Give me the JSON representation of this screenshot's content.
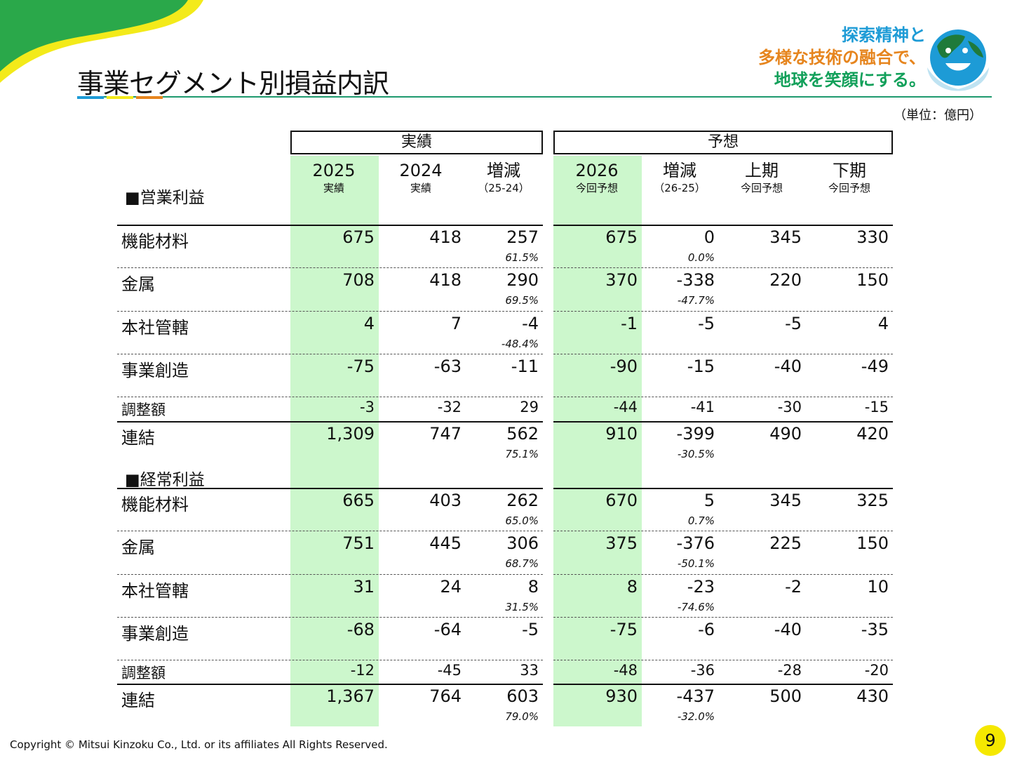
{
  "header": {
    "title": "事業セグメント別損益内訳",
    "slogan": [
      "探索精神と",
      "多様な技術の融合で、",
      "地球を笑顔にする。"
    ]
  },
  "unit": "（単位：億円）",
  "column_groups": {
    "actual": "実績",
    "forecast": "予想"
  },
  "columns": [
    {
      "year": "2025",
      "sub": "実績"
    },
    {
      "year": "2024",
      "sub": "実績"
    },
    {
      "year": "増減",
      "sub": "（25-24）"
    },
    {
      "year": "2026",
      "sub": "今回予想"
    },
    {
      "year": "増減",
      "sub": "（26-25）"
    },
    {
      "year": "上期",
      "sub": "今回予想"
    },
    {
      "year": "下期",
      "sub": "今回予想"
    }
  ],
  "sections": [
    {
      "title": "■営業利益",
      "rows": [
        {
          "label": "機能材料",
          "values": [
            "675",
            "418",
            "257",
            "675",
            "0",
            "345",
            "330"
          ],
          "pct1": "61.5%",
          "pct2": "0.0%"
        },
        {
          "label": "金属",
          "values": [
            "708",
            "418",
            "290",
            "370",
            "-338",
            "220",
            "150"
          ],
          "pct1": "69.5%",
          "pct2": "-47.7%"
        },
        {
          "label": "本社管轄",
          "values": [
            "4",
            "7",
            "-4",
            "-1",
            "-5",
            "-5",
            "4"
          ],
          "pct1": "-48.4%",
          "pct2": ""
        },
        {
          "label": "事業創造",
          "values": [
            "-75",
            "-63",
            "-11",
            "-90",
            "-15",
            "-40",
            "-49"
          ],
          "pct1": "",
          "pct2": ""
        },
        {
          "label": "調整額",
          "values": [
            "-3",
            "-32",
            "29",
            "-44",
            "-41",
            "-30",
            "-15"
          ],
          "pct1": "",
          "pct2": ""
        },
        {
          "label": "連結",
          "values": [
            "1,309",
            "747",
            "562",
            "910",
            "-399",
            "490",
            "420"
          ],
          "pct1": "75.1%",
          "pct2": "-30.5%"
        }
      ]
    },
    {
      "title": "■経常利益",
      "rows": [
        {
          "label": "機能材料",
          "values": [
            "665",
            "403",
            "262",
            "670",
            "5",
            "345",
            "325"
          ],
          "pct1": "65.0%",
          "pct2": "0.7%"
        },
        {
          "label": "金属",
          "values": [
            "751",
            "445",
            "306",
            "375",
            "-376",
            "225",
            "150"
          ],
          "pct1": "68.7%",
          "pct2": "-50.1%"
        },
        {
          "label": "本社管轄",
          "values": [
            "31",
            "24",
            "8",
            "8",
            "-23",
            "-2",
            "10"
          ],
          "pct1": "31.5%",
          "pct2": "-74.6%"
        },
        {
          "label": "事業創造",
          "values": [
            "-68",
            "-64",
            "-5",
            "-75",
            "-6",
            "-40",
            "-35"
          ],
          "pct1": "",
          "pct2": ""
        },
        {
          "label": "調整額",
          "values": [
            "-12",
            "-45",
            "33",
            "-48",
            "-36",
            "-28",
            "-20"
          ],
          "pct1": "",
          "pct2": ""
        },
        {
          "label": "連結",
          "values": [
            "1,367",
            "764",
            "603",
            "930",
            "-437",
            "500",
            "430"
          ],
          "pct1": "79.0%",
          "pct2": "-32.0%"
        }
      ]
    }
  ],
  "footer": {
    "copyright": "Copyright © Mitsui Kinzoku Co., Ltd. or its affiliates All Rights Reserved.",
    "page": "9"
  }
}
